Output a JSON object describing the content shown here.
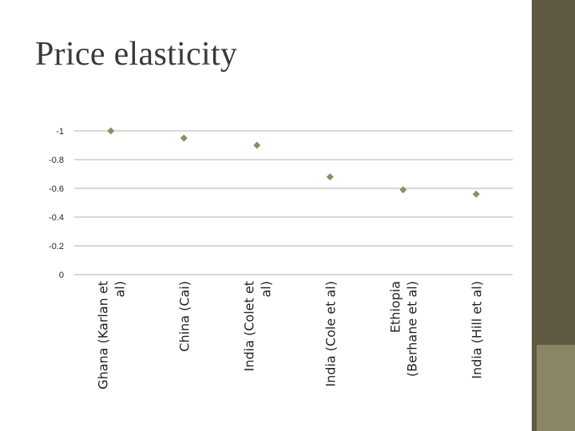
{
  "slide": {
    "title": "Price elasticity"
  },
  "colors": {
    "marker": "#8d8c68",
    "gridline": "#b0b0b0",
    "side_panel": "#5f5944",
    "side_box": "#8a8564"
  },
  "chart_data": {
    "type": "scatter",
    "title": "",
    "xlabel": "",
    "ylabel": "",
    "categories": [
      [
        "Ghana (Karlan et",
        "al)"
      ],
      [
        "China (Cai)"
      ],
      [
        "India (Colet et",
        "al)"
      ],
      [
        "India (Cole et al)"
      ],
      [
        "Ethiopia",
        "(Berhane et al)"
      ],
      [
        "India (Hill et al)"
      ]
    ],
    "values": [
      -1.0,
      -0.95,
      -0.9,
      -0.68,
      -0.59,
      -0.56
    ],
    "ylim": [
      -1,
      0
    ],
    "yticks": [
      {
        "value": -1,
        "label": "-1"
      },
      {
        "value": -0.8,
        "label": "-0.8"
      },
      {
        "value": -0.6,
        "label": "-0.6"
      },
      {
        "value": -0.4,
        "label": "-0.4"
      },
      {
        "value": -0.2,
        "label": "-0.2"
      },
      {
        "value": 0,
        "label": "0"
      }
    ],
    "y_axis_reversed": true,
    "grid": true,
    "legend": "none",
    "marker": "diamond"
  }
}
